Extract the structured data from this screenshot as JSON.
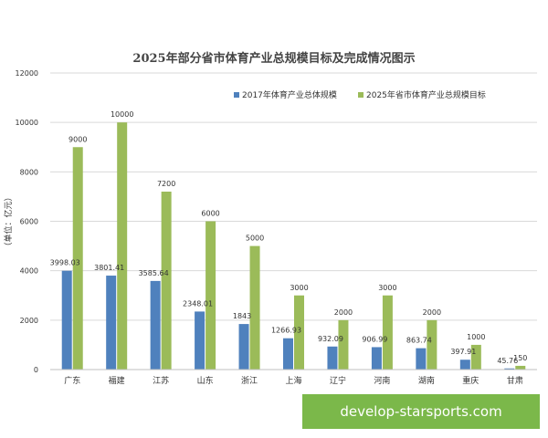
{
  "chart_data": {
    "type": "bar",
    "title": "2025年部分省市体育产业总规模目标及完成情况图示",
    "ylabel": "（单位：亿元）",
    "xlabel": "",
    "ylim": [
      0,
      12000
    ],
    "yticks": [
      0,
      2000,
      4000,
      6000,
      8000,
      10000,
      12000
    ],
    "grid": true,
    "legend_position": "top-right",
    "categories": [
      "广东",
      "福建",
      "江苏",
      "山东",
      "浙江",
      "上海",
      "辽宁",
      "河南",
      "湖南",
      "重庆",
      "甘肃"
    ],
    "series": [
      {
        "name": "2017年体育产业总体规模",
        "color": "#4f81bd",
        "values": [
          3998.03,
          3801.41,
          3585.64,
          2348.01,
          1843,
          1266.93,
          932.09,
          906.99,
          863.74,
          397.91,
          45.76
        ],
        "labels": [
          "3998.03",
          "3801.41",
          "3585.64",
          "2348.01",
          "1843",
          "1266.93",
          "932.09",
          "906.99",
          "863.74",
          "397.91",
          "45.76"
        ]
      },
      {
        "name": "2025年省市体育产业总规模目标",
        "color": "#9bbb59",
        "values": [
          9000,
          10000,
          7200,
          6000,
          5000,
          3000,
          2000,
          3000,
          2000,
          1000,
          150
        ],
        "labels": [
          "9000",
          "10000",
          "7200",
          "6000",
          "5000",
          "3000",
          "2000",
          "3000",
          "2000",
          "1000",
          "150"
        ]
      }
    ]
  },
  "watermark": {
    "text": "develop-starsports.com",
    "color": "#7bb84a"
  }
}
